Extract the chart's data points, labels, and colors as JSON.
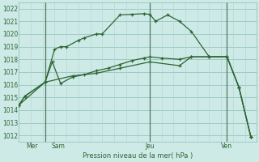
{
  "bg_color": "#ceeae6",
  "grid_color_major": "#8bbdb8",
  "grid_color_minor": "#b0d4d0",
  "line_color": "#2d6535",
  "vline_color": "#4a7a60",
  "ylabel": "Pression niveau de la mer( hPa )",
  "ylim": [
    1011.5,
    1022.5
  ],
  "yticks": [
    1012,
    1013,
    1014,
    1015,
    1016,
    1017,
    1018,
    1019,
    1020,
    1021,
    1022
  ],
  "xlim": [
    0,
    20
  ],
  "vlines_x": [
    2.2,
    11.0,
    17.5
  ],
  "xtick_pos": [
    1.1,
    3.3,
    11.0,
    17.5
  ],
  "xtick_lbl": [
    "Mer",
    "Sam",
    "Jeu",
    "Ven"
  ],
  "s1_x": [
    0.0,
    0.5,
    2.2,
    3.0,
    3.5,
    4.0,
    5.0,
    5.5,
    6.5,
    7.0,
    8.5,
    9.5,
    10.5,
    11.0,
    11.5,
    12.5,
    13.5,
    14.5,
    16.0,
    17.5,
    18.5,
    19.5
  ],
  "s1_y": [
    1014.4,
    1015.1,
    1016.2,
    1018.8,
    1019.0,
    1019.0,
    1019.5,
    1019.7,
    1020.0,
    1020.0,
    1021.5,
    1021.55,
    1021.6,
    1021.55,
    1021.0,
    1021.5,
    1021.0,
    1020.2,
    1018.2,
    1018.2,
    1015.8,
    1011.9
  ],
  "s2_x": [
    0.0,
    0.5,
    2.2,
    2.8,
    3.5,
    4.5,
    5.5,
    6.5,
    7.5,
    8.5,
    9.5,
    10.5,
    11.0,
    12.0,
    13.5,
    14.5,
    16.0,
    17.5,
    18.5,
    19.5
  ],
  "s2_y": [
    1014.4,
    1015.1,
    1016.2,
    1017.8,
    1016.1,
    1016.6,
    1016.8,
    1017.1,
    1017.3,
    1017.6,
    1017.9,
    1018.1,
    1018.2,
    1018.1,
    1018.0,
    1018.2,
    1018.2,
    1018.2,
    1015.8,
    1011.9
  ],
  "s3_x": [
    0.0,
    2.2,
    4.5,
    6.5,
    8.5,
    11.0,
    13.5,
    14.5,
    16.0,
    17.5,
    18.5,
    19.5
  ],
  "s3_y": [
    1014.4,
    1016.2,
    1016.7,
    1016.9,
    1017.3,
    1017.8,
    1017.5,
    1018.2,
    1018.2,
    1018.2,
    1015.8,
    1011.9
  ]
}
